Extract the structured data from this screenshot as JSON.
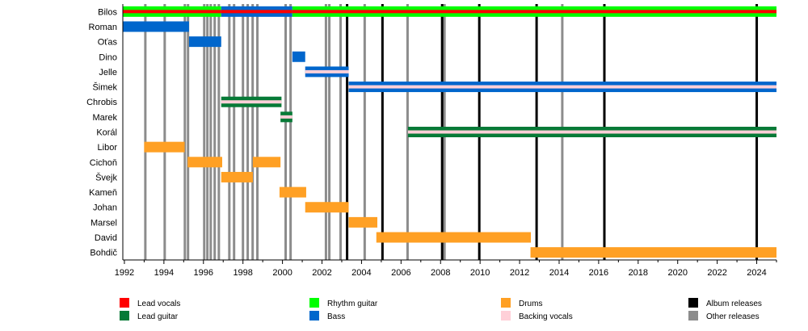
{
  "chart_data": {
    "type": "timeline",
    "xlim": [
      1991.92,
      2025.0
    ],
    "x_ticks": [
      "1992",
      "1994",
      "1996",
      "1998",
      "2000",
      "2002",
      "2004",
      "2006",
      "2008",
      "2010",
      "2012",
      "2014",
      "2016",
      "2018",
      "2020",
      "2022",
      "2024"
    ],
    "minor_ticks": "yearly",
    "roles": {
      "lead_vocals": {
        "label": "Lead vocals",
        "color": "#ff0000"
      },
      "rhythm_guitar": {
        "label": "Rhythm guitar",
        "color": "#00ff00"
      },
      "drums": {
        "label": "Drums",
        "color": "#ffa024"
      },
      "album": {
        "label": "Album releases",
        "color": "#000000"
      },
      "lead_guitar": {
        "label": "Lead guitar",
        "color": "#077a37"
      },
      "bass": {
        "label": "Bass",
        "color": "#0066cc"
      },
      "backing_vocals": {
        "label": "Backing vocals",
        "color": "#ffd0d8"
      },
      "other": {
        "label": "Other releases",
        "color": "#8c8c8c"
      }
    },
    "legend_order": [
      "lead_vocals",
      "lead_guitar",
      "rhythm_guitar",
      "bass",
      "drums",
      "backing_vocals",
      "album",
      "other"
    ],
    "members": [
      {
        "name": "Bilos",
        "periods": [
          {
            "start": 1991.92,
            "end": 1996.9,
            "role": "rhythm_guitar",
            "secondary": "lead_vocals"
          },
          {
            "start": 1996.9,
            "end": 2000.5,
            "role": "bass",
            "secondary": "lead_vocals"
          },
          {
            "start": 2000.5,
            "end": 2025.0,
            "role": "rhythm_guitar",
            "secondary": "lead_vocals"
          }
        ]
      },
      {
        "name": "Roman",
        "periods": [
          {
            "start": 1991.92,
            "end": 1995.27,
            "role": "bass"
          }
        ]
      },
      {
        "name": "Oťas",
        "periods": [
          {
            "start": 1995.27,
            "end": 1996.9,
            "role": "bass"
          }
        ]
      },
      {
        "name": "Dino",
        "periods": [
          {
            "start": 2000.5,
            "end": 2001.15,
            "role": "bass"
          }
        ]
      },
      {
        "name": "Jelle",
        "periods": [
          {
            "start": 2001.15,
            "end": 2003.35,
            "role": "bass",
            "secondary": "backing_vocals"
          }
        ]
      },
      {
        "name": "Šimek",
        "periods": [
          {
            "start": 2003.35,
            "end": 2025.0,
            "role": "bass",
            "secondary": "backing_vocals"
          }
        ]
      },
      {
        "name": "Chrobis",
        "periods": [
          {
            "start": 1996.9,
            "end": 1999.95,
            "role": "lead_guitar",
            "secondary": "backing_vocals"
          }
        ]
      },
      {
        "name": "Marek",
        "periods": [
          {
            "start": 1999.9,
            "end": 2000.5,
            "role": "lead_guitar",
            "secondary": "backing_vocals"
          }
        ]
      },
      {
        "name": "Korál",
        "periods": [
          {
            "start": 2006.35,
            "end": 2025.0,
            "role": "lead_guitar",
            "secondary": "backing_vocals"
          }
        ]
      },
      {
        "name": "Libor",
        "periods": [
          {
            "start": 1993.0,
            "end": 1995.05,
            "role": "drums"
          }
        ]
      },
      {
        "name": "Cichoň",
        "periods": [
          {
            "start": 1995.2,
            "end": 1996.95,
            "role": "drums"
          },
          {
            "start": 1998.5,
            "end": 1999.9,
            "role": "drums"
          }
        ]
      },
      {
        "name": "Švejk",
        "periods": [
          {
            "start": 1996.9,
            "end": 1998.5,
            "role": "drums"
          }
        ]
      },
      {
        "name": "Kameň",
        "periods": [
          {
            "start": 1999.85,
            "end": 2001.2,
            "role": "drums"
          }
        ]
      },
      {
        "name": "Johan",
        "periods": [
          {
            "start": 2001.15,
            "end": 2003.35,
            "role": "drums"
          }
        ]
      },
      {
        "name": "Marsel",
        "periods": [
          {
            "start": 2003.35,
            "end": 2004.8,
            "role": "drums"
          }
        ]
      },
      {
        "name": "David",
        "periods": [
          {
            "start": 2004.75,
            "end": 2012.57,
            "role": "drums"
          }
        ]
      },
      {
        "name": "Bohdič",
        "periods": [
          {
            "start": 2012.55,
            "end": 2025.0,
            "role": "drums"
          }
        ]
      }
    ],
    "album_releases": [
      2003.27,
      2005.06,
      2008.08,
      2009.96,
      2012.86,
      2016.29,
      2024.0
    ],
    "other_releases": [
      1993.06,
      1994.04,
      1995.06,
      1995.22,
      1996.04,
      1996.2,
      1996.37,
      1996.57,
      1996.78,
      1997.31,
      1997.55,
      1998.0,
      1998.24,
      1998.49,
      1998.73,
      2000.16,
      2000.41,
      2002.2,
      2002.37,
      2002.94,
      2004.16,
      2006.33,
      2008.2,
      2014.16
    ]
  }
}
